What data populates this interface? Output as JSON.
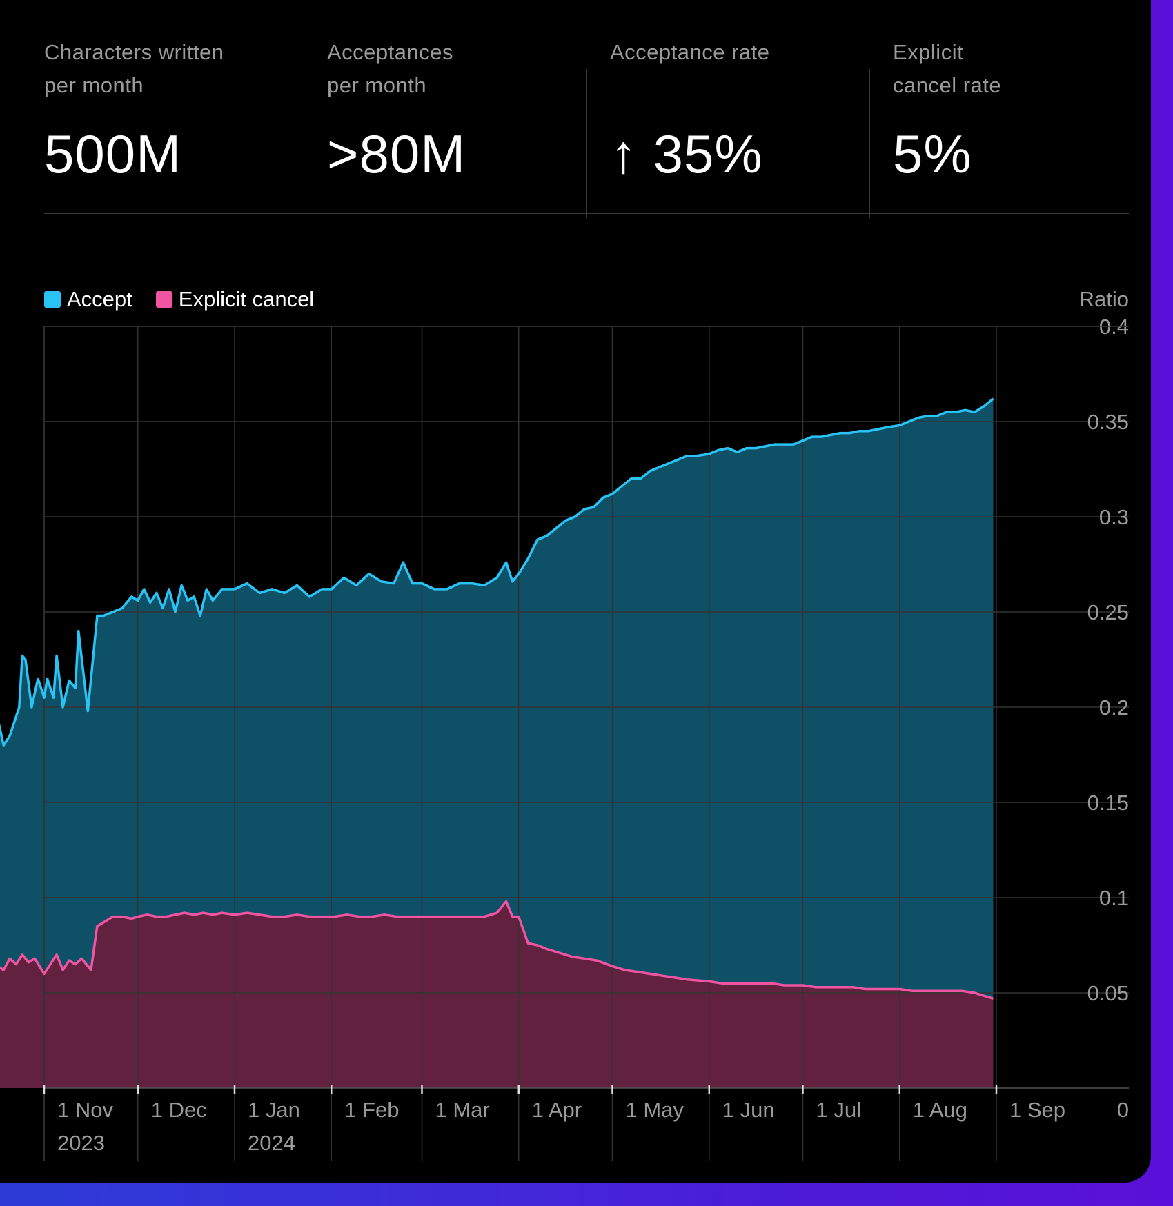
{
  "stats": [
    {
      "label": "Characters written\nper month",
      "value": "500M"
    },
    {
      "label": "Acceptances\nper month",
      "value": ">80M"
    },
    {
      "label": "Acceptance rate",
      "value": "↑ 35%"
    },
    {
      "label": "Explicit\ncancel rate",
      "value": "5%"
    }
  ],
  "colors": {
    "accept_line": "#29c3f6",
    "accept_fill": "#0e5066",
    "cancel_line": "#ef55a0",
    "cancel_fill": "#62223f",
    "grid": "#333333",
    "axis_text": "#9a9a9a"
  },
  "chart_data": {
    "type": "area",
    "legend": [
      "Accept",
      "Explicit cancel"
    ],
    "legend_position": "top-left",
    "ylabel": "Ratio",
    "ylim": [
      0,
      0.4
    ],
    "yticks": [
      0,
      0.05,
      0.1,
      0.15,
      0.2,
      0.25,
      0.3,
      0.35,
      0.4
    ],
    "ytick_labels": [
      "0",
      "0.05",
      "0.1",
      "0.15",
      "0.2",
      "0.25",
      "0.3",
      "0.35",
      "0.4"
    ],
    "grid": true,
    "xlim": [
      "2023-10-01",
      "2024-09-16"
    ],
    "xticks": [
      {
        "date": "2023-11-01",
        "label": "1 Nov",
        "sublabel": "2023"
      },
      {
        "date": "2023-12-01",
        "label": "1 Dec",
        "sublabel": ""
      },
      {
        "date": "2024-01-01",
        "label": "1 Jan",
        "sublabel": "2024"
      },
      {
        "date": "2024-02-01",
        "label": "1 Feb",
        "sublabel": ""
      },
      {
        "date": "2024-03-01",
        "label": "1 Mar",
        "sublabel": ""
      },
      {
        "date": "2024-04-01",
        "label": "1 Apr",
        "sublabel": ""
      },
      {
        "date": "2024-05-01",
        "label": "1 May",
        "sublabel": ""
      },
      {
        "date": "2024-06-01",
        "label": "1 Jun",
        "sublabel": ""
      },
      {
        "date": "2024-07-01",
        "label": "1 Jul",
        "sublabel": ""
      },
      {
        "date": "2024-08-01",
        "label": "1 Aug",
        "sublabel": ""
      },
      {
        "date": "2024-09-01",
        "label": "1 Sep",
        "sublabel": ""
      }
    ],
    "series": [
      {
        "name": "Accept",
        "points": [
          [
            "2023-10-01",
            0.117
          ],
          [
            "2023-10-03",
            0.106
          ],
          [
            "2023-10-05",
            0.118
          ],
          [
            "2023-10-07",
            0.125
          ],
          [
            "2023-10-09",
            0.134
          ],
          [
            "2023-10-11",
            0.17
          ],
          [
            "2023-10-12",
            0.186
          ],
          [
            "2023-10-14",
            0.17
          ],
          [
            "2023-10-16",
            0.178
          ],
          [
            "2023-10-17",
            0.195
          ],
          [
            "2023-10-19",
            0.18
          ],
          [
            "2023-10-21",
            0.185
          ],
          [
            "2023-10-24",
            0.2
          ],
          [
            "2023-10-25",
            0.227
          ],
          [
            "2023-10-26",
            0.225
          ],
          [
            "2023-10-28",
            0.2
          ],
          [
            "2023-10-30",
            0.215
          ],
          [
            "2023-11-01",
            0.205
          ],
          [
            "2023-11-02",
            0.215
          ],
          [
            "2023-11-04",
            0.205
          ],
          [
            "2023-11-05",
            0.227
          ],
          [
            "2023-11-07",
            0.2
          ],
          [
            "2023-11-09",
            0.214
          ],
          [
            "2023-11-11",
            0.21
          ],
          [
            "2023-11-12",
            0.24
          ],
          [
            "2023-11-15",
            0.198
          ],
          [
            "2023-11-18",
            0.248
          ],
          [
            "2023-11-20",
            0.248
          ],
          [
            "2023-11-23",
            0.25
          ],
          [
            "2023-11-26",
            0.252
          ],
          [
            "2023-11-29",
            0.258
          ],
          [
            "2023-12-01",
            0.256
          ],
          [
            "2023-12-03",
            0.262
          ],
          [
            "2023-12-05",
            0.255
          ],
          [
            "2023-12-07",
            0.26
          ],
          [
            "2023-12-09",
            0.252
          ],
          [
            "2023-12-11",
            0.262
          ],
          [
            "2023-12-13",
            0.25
          ],
          [
            "2023-12-15",
            0.264
          ],
          [
            "2023-12-17",
            0.256
          ],
          [
            "2023-12-19",
            0.258
          ],
          [
            "2023-12-21",
            0.248
          ],
          [
            "2023-12-23",
            0.262
          ],
          [
            "2023-12-25",
            0.256
          ],
          [
            "2023-12-28",
            0.262
          ],
          [
            "2024-01-01",
            0.262
          ],
          [
            "2024-01-05",
            0.265
          ],
          [
            "2024-01-09",
            0.26
          ],
          [
            "2024-01-13",
            0.262
          ],
          [
            "2024-01-17",
            0.26
          ],
          [
            "2024-01-21",
            0.264
          ],
          [
            "2024-01-25",
            0.258
          ],
          [
            "2024-01-29",
            0.262
          ],
          [
            "2024-02-01",
            0.262
          ],
          [
            "2024-02-05",
            0.268
          ],
          [
            "2024-02-09",
            0.264
          ],
          [
            "2024-02-13",
            0.27
          ],
          [
            "2024-02-17",
            0.266
          ],
          [
            "2024-02-21",
            0.265
          ],
          [
            "2024-02-24",
            0.276
          ],
          [
            "2024-02-27",
            0.265
          ],
          [
            "2024-03-01",
            0.265
          ],
          [
            "2024-03-05",
            0.262
          ],
          [
            "2024-03-09",
            0.262
          ],
          [
            "2024-03-13",
            0.265
          ],
          [
            "2024-03-17",
            0.265
          ],
          [
            "2024-03-21",
            0.264
          ],
          [
            "2024-03-25",
            0.268
          ],
          [
            "2024-03-28",
            0.276
          ],
          [
            "2024-03-30",
            0.266
          ],
          [
            "2024-04-01",
            0.27
          ],
          [
            "2024-04-04",
            0.278
          ],
          [
            "2024-04-07",
            0.288
          ],
          [
            "2024-04-10",
            0.29
          ],
          [
            "2024-04-13",
            0.294
          ],
          [
            "2024-04-16",
            0.298
          ],
          [
            "2024-04-19",
            0.3
          ],
          [
            "2024-04-22",
            0.304
          ],
          [
            "2024-04-25",
            0.305
          ],
          [
            "2024-04-28",
            0.31
          ],
          [
            "2024-05-01",
            0.312
          ],
          [
            "2024-05-04",
            0.316
          ],
          [
            "2024-05-07",
            0.32
          ],
          [
            "2024-05-10",
            0.32
          ],
          [
            "2024-05-13",
            0.324
          ],
          [
            "2024-05-16",
            0.326
          ],
          [
            "2024-05-19",
            0.328
          ],
          [
            "2024-05-22",
            0.33
          ],
          [
            "2024-05-25",
            0.332
          ],
          [
            "2024-05-28",
            0.332
          ],
          [
            "2024-06-01",
            0.333
          ],
          [
            "2024-06-04",
            0.335
          ],
          [
            "2024-06-07",
            0.336
          ],
          [
            "2024-06-10",
            0.334
          ],
          [
            "2024-06-13",
            0.336
          ],
          [
            "2024-06-16",
            0.336
          ],
          [
            "2024-06-19",
            0.337
          ],
          [
            "2024-06-22",
            0.338
          ],
          [
            "2024-06-25",
            0.338
          ],
          [
            "2024-06-28",
            0.338
          ],
          [
            "2024-07-01",
            0.34
          ],
          [
            "2024-07-04",
            0.342
          ],
          [
            "2024-07-07",
            0.342
          ],
          [
            "2024-07-10",
            0.343
          ],
          [
            "2024-07-13",
            0.344
          ],
          [
            "2024-07-16",
            0.344
          ],
          [
            "2024-07-19",
            0.345
          ],
          [
            "2024-07-22",
            0.345
          ],
          [
            "2024-07-25",
            0.346
          ],
          [
            "2024-07-28",
            0.347
          ],
          [
            "2024-08-01",
            0.348
          ],
          [
            "2024-08-04",
            0.35
          ],
          [
            "2024-08-07",
            0.352
          ],
          [
            "2024-08-10",
            0.353
          ],
          [
            "2024-08-13",
            0.353
          ],
          [
            "2024-08-16",
            0.355
          ],
          [
            "2024-08-19",
            0.355
          ],
          [
            "2024-08-22",
            0.356
          ],
          [
            "2024-08-25",
            0.355
          ],
          [
            "2024-08-28",
            0.358
          ],
          [
            "2024-08-31",
            0.362
          ]
        ]
      },
      {
        "name": "Explicit cancel",
        "points": [
          [
            "2023-10-01",
            0.0
          ],
          [
            "2023-10-06",
            0.0
          ],
          [
            "2023-10-07",
            0.003
          ],
          [
            "2023-10-09",
            0.035
          ],
          [
            "2023-10-11",
            0.05
          ],
          [
            "2023-10-13",
            0.055
          ],
          [
            "2023-10-15",
            0.062
          ],
          [
            "2023-10-17",
            0.064
          ],
          [
            "2023-10-19",
            0.062
          ],
          [
            "2023-10-21",
            0.068
          ],
          [
            "2023-10-23",
            0.065
          ],
          [
            "2023-10-25",
            0.07
          ],
          [
            "2023-10-27",
            0.066
          ],
          [
            "2023-10-29",
            0.068
          ],
          [
            "2023-11-01",
            0.06
          ],
          [
            "2023-11-03",
            0.065
          ],
          [
            "2023-11-05",
            0.07
          ],
          [
            "2023-11-07",
            0.062
          ],
          [
            "2023-11-09",
            0.067
          ],
          [
            "2023-11-11",
            0.065
          ],
          [
            "2023-11-13",
            0.068
          ],
          [
            "2023-11-16",
            0.062
          ],
          [
            "2023-11-18",
            0.085
          ],
          [
            "2023-11-20",
            0.087
          ],
          [
            "2023-11-23",
            0.09
          ],
          [
            "2023-11-26",
            0.09
          ],
          [
            "2023-11-29",
            0.089
          ],
          [
            "2023-12-01",
            0.09
          ],
          [
            "2023-12-04",
            0.091
          ],
          [
            "2023-12-07",
            0.09
          ],
          [
            "2023-12-10",
            0.09
          ],
          [
            "2023-12-13",
            0.091
          ],
          [
            "2023-12-16",
            0.092
          ],
          [
            "2023-12-19",
            0.091
          ],
          [
            "2023-12-22",
            0.092
          ],
          [
            "2023-12-25",
            0.091
          ],
          [
            "2023-12-28",
            0.092
          ],
          [
            "2024-01-01",
            0.091
          ],
          [
            "2024-01-05",
            0.092
          ],
          [
            "2024-01-09",
            0.091
          ],
          [
            "2024-01-13",
            0.09
          ],
          [
            "2024-01-17",
            0.09
          ],
          [
            "2024-01-21",
            0.091
          ],
          [
            "2024-01-25",
            0.09
          ],
          [
            "2024-01-29",
            0.09
          ],
          [
            "2024-02-02",
            0.09
          ],
          [
            "2024-02-06",
            0.091
          ],
          [
            "2024-02-10",
            0.09
          ],
          [
            "2024-02-14",
            0.09
          ],
          [
            "2024-02-18",
            0.091
          ],
          [
            "2024-02-22",
            0.09
          ],
          [
            "2024-02-26",
            0.09
          ],
          [
            "2024-03-01",
            0.09
          ],
          [
            "2024-03-05",
            0.09
          ],
          [
            "2024-03-09",
            0.09
          ],
          [
            "2024-03-13",
            0.09
          ],
          [
            "2024-03-17",
            0.09
          ],
          [
            "2024-03-21",
            0.09
          ],
          [
            "2024-03-25",
            0.092
          ],
          [
            "2024-03-28",
            0.098
          ],
          [
            "2024-03-30",
            0.09
          ],
          [
            "2024-04-01",
            0.09
          ],
          [
            "2024-04-04",
            0.076
          ],
          [
            "2024-04-07",
            0.075
          ],
          [
            "2024-04-10",
            0.073
          ],
          [
            "2024-04-14",
            0.071
          ],
          [
            "2024-04-18",
            0.069
          ],
          [
            "2024-04-22",
            0.068
          ],
          [
            "2024-04-26",
            0.067
          ],
          [
            "2024-05-01",
            0.064
          ],
          [
            "2024-05-05",
            0.062
          ],
          [
            "2024-05-09",
            0.061
          ],
          [
            "2024-05-13",
            0.06
          ],
          [
            "2024-05-17",
            0.059
          ],
          [
            "2024-05-21",
            0.058
          ],
          [
            "2024-05-25",
            0.057
          ],
          [
            "2024-06-01",
            0.056
          ],
          [
            "2024-06-05",
            0.055
          ],
          [
            "2024-06-09",
            0.055
          ],
          [
            "2024-06-13",
            0.055
          ],
          [
            "2024-06-17",
            0.055
          ],
          [
            "2024-06-21",
            0.055
          ],
          [
            "2024-06-25",
            0.054
          ],
          [
            "2024-07-01",
            0.054
          ],
          [
            "2024-07-05",
            0.053
          ],
          [
            "2024-07-09",
            0.053
          ],
          [
            "2024-07-13",
            0.053
          ],
          [
            "2024-07-17",
            0.053
          ],
          [
            "2024-07-21",
            0.052
          ],
          [
            "2024-07-25",
            0.052
          ],
          [
            "2024-08-01",
            0.052
          ],
          [
            "2024-08-05",
            0.051
          ],
          [
            "2024-08-09",
            0.051
          ],
          [
            "2024-08-13",
            0.051
          ],
          [
            "2024-08-17",
            0.051
          ],
          [
            "2024-08-21",
            0.051
          ],
          [
            "2024-08-25",
            0.05
          ],
          [
            "2024-08-31",
            0.047
          ]
        ]
      }
    ]
  }
}
